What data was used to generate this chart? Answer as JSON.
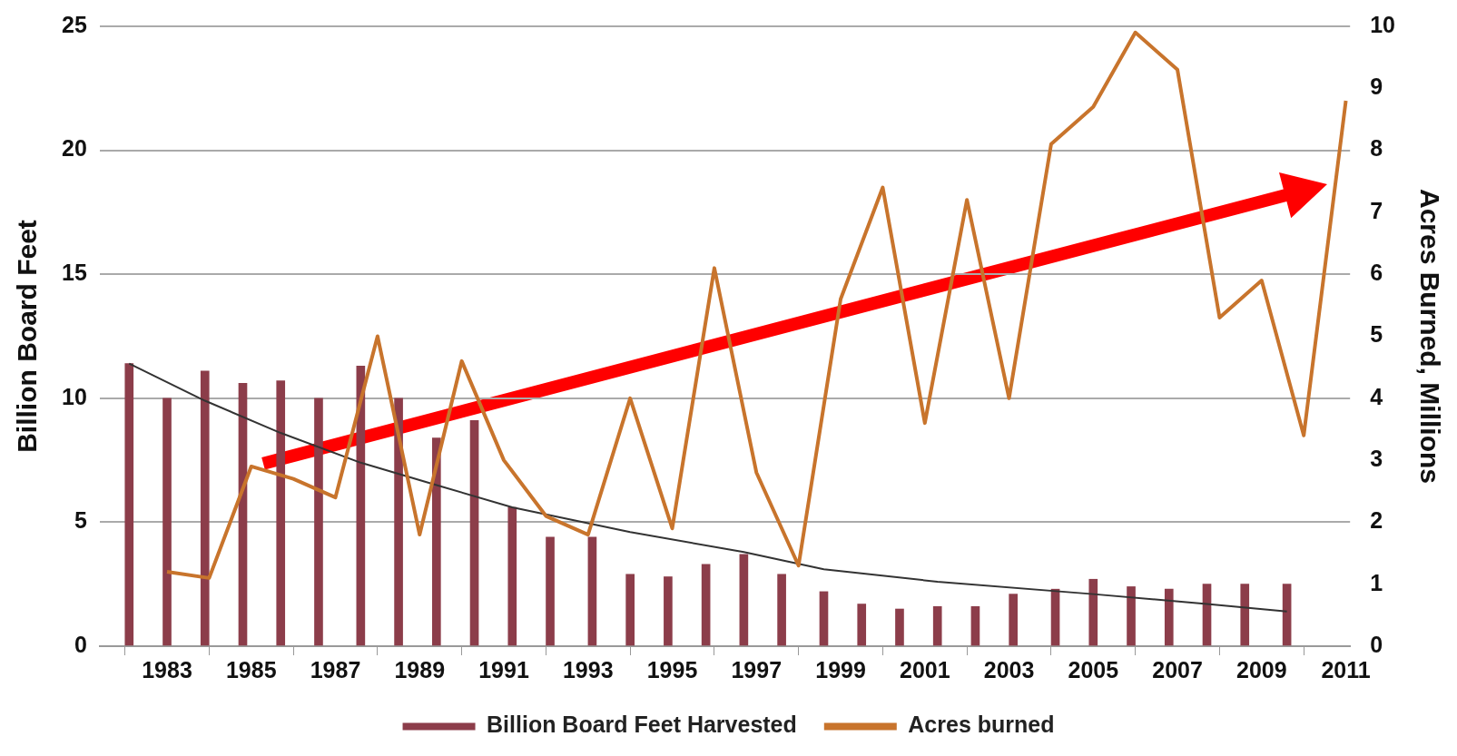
{
  "chart_data": {
    "type": "bar",
    "series": [
      {
        "name": "Billion Board Feet Harvested",
        "color": "#8c3d4a",
        "x": [
          1982.1,
          1983.0,
          1983.9,
          1984.8,
          1985.7,
          1986.6,
          1987.6,
          1988.5,
          1989.4,
          1990.3,
          1991.2,
          1992.1,
          1993.1,
          1994.0,
          1994.9,
          1995.8,
          1996.7,
          1997.6,
          1998.6,
          1999.5,
          2000.4,
          2001.3,
          2002.2,
          2003.1,
          2004.1,
          2005.0,
          2005.9,
          2006.8,
          2007.7,
          2008.6,
          2009.6
        ],
        "values": [
          11.4,
          10.0,
          11.1,
          10.6,
          10.7,
          10.0,
          11.3,
          10.0,
          8.4,
          9.1,
          5.6,
          4.4,
          4.4,
          2.9,
          2.8,
          3.3,
          3.7,
          2.9,
          2.2,
          1.7,
          1.5,
          1.6,
          1.6,
          2.1,
          2.3,
          2.7,
          2.4,
          2.3,
          2.5,
          2.5,
          2.5
        ]
      },
      {
        "type": "line",
        "color": "#333333",
        "x": [
          1982.1,
          1983.9,
          1985.7,
          1987.6,
          1989.4,
          1991.2,
          1994.0,
          1996.7,
          1998.6,
          2001.3,
          2005.0,
          2007.7,
          2009.6
        ],
        "values": [
          11.4,
          9.9,
          8.6,
          7.4,
          6.5,
          5.6,
          4.6,
          3.8,
          3.1,
          2.6,
          2.1,
          1.7,
          1.4
        ]
      },
      {
        "name": "Acres burned",
        "type": "line",
        "axis": "y2",
        "color": "#c8742c",
        "x": [
          1983,
          1984,
          1985,
          1986,
          1987,
          1988,
          1989,
          1990,
          1991,
          1992,
          1993,
          1994,
          1995,
          1996,
          1997,
          1998,
          1999,
          2000,
          2001,
          2002,
          2003,
          2004,
          2005,
          2006,
          2007,
          2008,
          2009,
          2010,
          2011
        ],
        "values": [
          1.2,
          1.1,
          2.9,
          2.7,
          2.4,
          5.0,
          1.8,
          4.6,
          3.0,
          2.1,
          1.8,
          4.0,
          1.9,
          6.1,
          2.8,
          1.3,
          5.6,
          7.4,
          3.6,
          7.2,
          4.0,
          8.1,
          8.7,
          9.9,
          9.3,
          5.3,
          5.9,
          3.4,
          8.8
        ]
      }
    ],
    "xlim": [
      1981.4,
      2011.1
    ],
    "xticks": [
      1983,
      1985,
      1987,
      1989,
      1991,
      1993,
      1995,
      1997,
      1999,
      2001,
      2003,
      2005,
      2007,
      2009,
      2011
    ],
    "ylim": [
      0,
      25
    ],
    "yticks": [
      0,
      5,
      10,
      15,
      20,
      25
    ],
    "y2lim": [
      0,
      10
    ],
    "y2ticks": [
      0,
      1,
      2,
      3,
      4,
      5,
      6,
      7,
      8,
      9,
      10
    ],
    "ylabel": "Billion Board Feet",
    "y2label": "Acres Burned, Millions",
    "grid": "y",
    "legend": "bottom"
  }
}
